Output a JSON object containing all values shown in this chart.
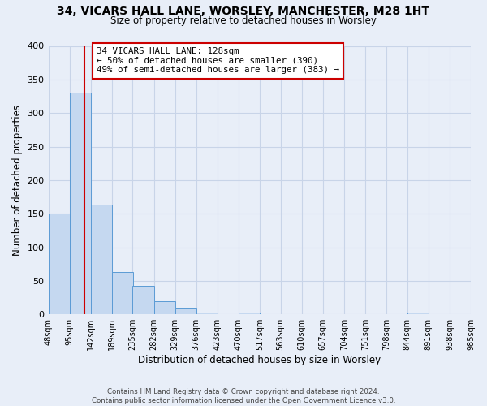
{
  "title_line1": "34, VICARS HALL LANE, WORSLEY, MANCHESTER, M28 1HT",
  "title_line2": "Size of property relative to detached houses in Worsley",
  "xlabel": "Distribution of detached houses by size in Worsley",
  "ylabel": "Number of detached properties",
  "bin_edges": [
    48,
    95,
    142,
    189,
    235,
    282,
    329,
    376,
    423,
    470,
    517,
    563,
    610,
    657,
    704,
    751,
    798,
    844,
    891,
    938,
    985
  ],
  "bar_heights": [
    150,
    330,
    163,
    63,
    42,
    20,
    10,
    3,
    0,
    3,
    0,
    0,
    0,
    0,
    0,
    0,
    0,
    3,
    0,
    0
  ],
  "bar_color": "#c5d8f0",
  "bar_edge_color": "#5b9bd5",
  "grid_color": "#c8d4e8",
  "background_color": "#e8eef8",
  "property_size": 128,
  "vline_color": "#cc0000",
  "annotation_text": "34 VICARS HALL LANE: 128sqm\n← 50% of detached houses are smaller (390)\n49% of semi-detached houses are larger (383) →",
  "annotation_box_color": "#ffffff",
  "annotation_box_edge": "#cc0000",
  "ylim": [
    0,
    400
  ],
  "yticks": [
    0,
    50,
    100,
    150,
    200,
    250,
    300,
    350,
    400
  ],
  "footnote": "Contains HM Land Registry data © Crown copyright and database right 2024.\nContains public sector information licensed under the Open Government Licence v3.0.",
  "tick_labels": [
    "48sqm",
    "95sqm",
    "142sqm",
    "189sqm",
    "235sqm",
    "282sqm",
    "329sqm",
    "376sqm",
    "423sqm",
    "470sqm",
    "517sqm",
    "563sqm",
    "610sqm",
    "657sqm",
    "704sqm",
    "751sqm",
    "798sqm",
    "844sqm",
    "891sqm",
    "938sqm",
    "985sqm"
  ]
}
